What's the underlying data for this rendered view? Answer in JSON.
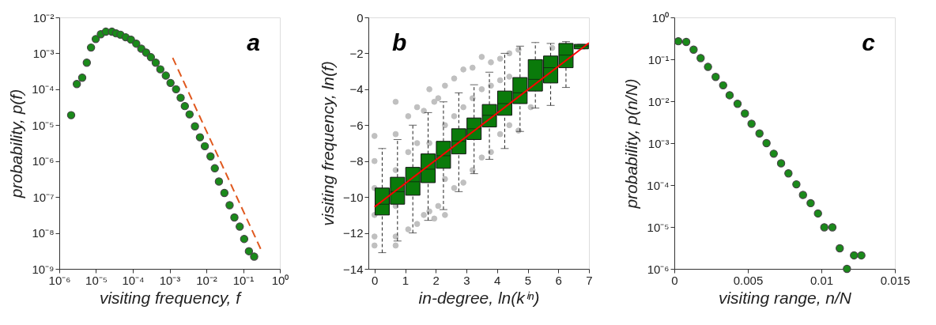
{
  "chart_data": [
    {
      "type": "scatter",
      "log": "xy",
      "marker": "circle",
      "grid": false,
      "xlabel": "visiting frequency, f",
      "ylabel": "probability, p(f)",
      "annotations": [
        "a"
      ],
      "xlim": [
        1e-06,
        1
      ],
      "ylim": [
        1e-09,
        0.01
      ],
      "xticks": [
        {
          "value": 1e-06,
          "label": "10⁻⁶"
        },
        {
          "value": 1e-05,
          "label": "10⁻⁵"
        },
        {
          "value": 0.0001,
          "label": "10⁻⁴"
        },
        {
          "value": 0.001,
          "label": "10⁻³"
        },
        {
          "value": 0.01,
          "label": "10⁻²"
        },
        {
          "value": 0.1,
          "label": "10⁻¹"
        },
        {
          "value": 1,
          "label": "10⁰"
        }
      ],
      "yticks": [
        {
          "value": 1e-09,
          "label": "10⁻⁹"
        },
        {
          "value": 1e-08,
          "label": "10⁻⁸"
        },
        {
          "value": 1e-07,
          "label": "10⁻⁷"
        },
        {
          "value": 1e-06,
          "label": "10⁻⁶"
        },
        {
          "value": 1e-05,
          "label": "10⁻⁵"
        },
        {
          "value": 0.0001,
          "label": "10⁻⁴"
        },
        {
          "value": 0.001,
          "label": "10⁻³"
        },
        {
          "value": 0.01,
          "label": "10⁻²"
        }
      ],
      "series": [
        {
          "type": "scatter",
          "color": "#1a8a1a",
          "x": [
            2.1e-06,
            3e-06,
            4.2e-06,
            5.6e-06,
            7.3e-06,
            9.8e-06,
            1.35e-05,
            1.85e-05,
            2.7e-05,
            3.5e-05,
            4.6e-05,
            6.4e-05,
            8.9e-05,
            0.000124,
            0.00017,
            0.00023,
            0.00031,
            0.00042,
            0.00056,
            0.00079,
            0.00106,
            0.0015,
            0.002,
            0.0026,
            0.0035,
            0.0049,
            0.0067,
            0.0091,
            0.013,
            0.017,
            0.022,
            0.031,
            0.043,
            0.058,
            0.081,
            0.107,
            0.144,
            0.2
          ],
          "values": [
            1.9e-05,
            0.00014,
            0.00021,
            0.00055,
            0.00145,
            0.0025,
            0.0034,
            0.004,
            0.004,
            0.0036,
            0.0033,
            0.0028,
            0.0024,
            0.00186,
            0.00135,
            0.00105,
            0.00078,
            0.00055,
            0.00036,
            0.00024,
            0.00015,
            0.0001,
            5.8e-05,
            3.4e-05,
            2e-05,
            9.3e-06,
            4.6e-06,
            2.6e-06,
            1.35e-06,
            6.3e-07,
            2.7e-07,
            1.3e-07,
            5.9e-08,
            2.7e-08,
            1.5e-08,
            6.8e-09,
            3.1e-09,
            2.2e-09
          ]
        },
        {
          "type": "line",
          "marker": "none",
          "line_style": "dashed",
          "color": "#e0591f",
          "x": [
            0.00115,
            0.3
          ],
          "values": [
            0.00085,
            3.6e-09
          ]
        }
      ]
    },
    {
      "type": "box",
      "grid": false,
      "xlabel": "in-degree, ln(kⁱⁿ)",
      "ylabel": "visiting frequency, ln(f)",
      "annotations": [
        "b"
      ],
      "xlim": [
        -0.2,
        7
      ],
      "ylim": [
        -14,
        0
      ],
      "xticks": [
        0,
        1,
        2,
        3,
        4,
        5,
        6,
        7
      ],
      "yticks": [
        -14,
        -12,
        -10,
        -8,
        -6,
        -4,
        -2,
        0
      ],
      "series": [
        {
          "type": "scatter",
          "marker": "circle",
          "color": "#c0c0c0",
          "x": [
            0,
            0,
            0,
            0,
            0,
            0,
            0.69,
            0.69,
            0.69,
            0.69,
            0.69,
            0.69,
            1.1,
            1.1,
            1.1,
            1.39,
            1.39,
            1.39,
            1.61,
            1.61,
            1.79,
            1.79,
            1.79,
            1.95,
            1.95,
            2.08,
            2.08,
            2.3,
            2.3,
            2.3,
            2.3,
            2.6,
            2.6,
            2.6,
            2.9,
            2.9,
            2.9,
            3.2,
            3.2,
            3.2,
            3.5,
            3.5,
            3.5,
            3.8,
            3.8,
            3.8,
            4.1,
            4.1,
            4.1,
            4.4,
            4.4,
            4.4,
            4.7,
            4.7,
            5.1,
            5.8
          ],
          "values": [
            -6.6,
            -8,
            -9.5,
            -11,
            -12.2,
            -12.7,
            -4.7,
            -6.5,
            -8.5,
            -10.5,
            -12.2,
            -12.7,
            -5.5,
            -7.5,
            -11.8,
            -5,
            -7,
            -11.5,
            -5.2,
            -11,
            -4,
            -7,
            -10.8,
            -4.7,
            -11.2,
            -4.5,
            -10.5,
            -3.8,
            -6,
            -9,
            -11,
            -3.4,
            -5.5,
            -9.5,
            -2.9,
            -5,
            -9.2,
            -2.8,
            -4.5,
            -8.5,
            -2.2,
            -4,
            -7.8,
            -2.5,
            -3.8,
            -7.5,
            -2.3,
            -3.5,
            -6.5,
            -2,
            -3.3,
            -6,
            -1.8,
            -6.3,
            -5,
            -1.7
          ]
        },
        {
          "type": "box",
          "color": "#0a7a0a",
          "x": [
            0.25,
            0.75,
            1.25,
            1.75,
            2.25,
            2.75,
            3.25,
            3.75,
            4.25,
            4.75,
            5.25,
            5.75,
            6.25,
            6.75
          ],
          "boxes": [
            {
              "low": -13.1,
              "q1": -11.0,
              "median": -10.4,
              "q3": -9.5,
              "high": -7.3
            },
            {
              "low": -12.45,
              "q1": -10.4,
              "median": -9.7,
              "q3": -8.9,
              "high": -6.8
            },
            {
              "low": -12.0,
              "q1": -9.9,
              "median": -9.15,
              "q3": -8.35,
              "high": -6.0
            },
            {
              "low": -11.3,
              "q1": -9.2,
              "median": -8.45,
              "q3": -7.6,
              "high": -5.3
            },
            {
              "low": -10.7,
              "q1": -8.4,
              "median": -7.7,
              "q3": -6.9,
              "high": -4.7
            },
            {
              "low": -9.7,
              "q1": -7.6,
              "median": -6.9,
              "q3": -6.2,
              "high": -4.2
            },
            {
              "low": -8.7,
              "q1": -6.8,
              "median": -6.2,
              "q3": -5.6,
              "high": -3.75
            },
            {
              "low": -7.9,
              "q1": -6.1,
              "median": -5.45,
              "q3": -4.85,
              "high": -3.05
            },
            {
              "low": -7.3,
              "q1": -5.45,
              "median": -4.8,
              "q3": -4.1,
              "high": -2.0
            },
            {
              "low": -6.35,
              "q1": -4.8,
              "median": -4.2,
              "q3": -3.35,
              "high": -1.6
            },
            {
              "low": -5.05,
              "q1": -4.1,
              "median": -3.45,
              "q3": -2.35,
              "high": -1.4
            },
            {
              "low": -4.9,
              "q1": -3.65,
              "median": -2.8,
              "q3": -2.15,
              "high": -1.45
            },
            {
              "low": -3.9,
              "q1": -2.8,
              "median": -2.1,
              "q3": -1.45,
              "high": -1.35
            },
            {
              "low": -1.75,
              "q1": -1.75,
              "median": -1.6,
              "q3": -1.5,
              "high": -1.5
            }
          ]
        },
        {
          "type": "line",
          "marker": "none",
          "color": "#ff0000",
          "x": [
            0,
            7
          ],
          "values": [
            -10.55,
            -1.42
          ]
        }
      ]
    },
    {
      "type": "scatter",
      "log": "y",
      "marker": "circle",
      "grid": false,
      "xlabel": "visiting range, n/N",
      "ylabel": "probability, p(n/N)",
      "annotations": [
        "c"
      ],
      "xlim": [
        0,
        0.015
      ],
      "ylim": [
        1e-06,
        1
      ],
      "xticks": [
        0,
        0.005,
        0.01,
        0.015
      ],
      "yticks": [
        {
          "value": 1e-06,
          "label": "10⁻⁶"
        },
        {
          "value": 1e-05,
          "label": "10⁻⁵"
        },
        {
          "value": 0.0001,
          "label": "10⁻⁴"
        },
        {
          "value": 0.001,
          "label": "10⁻³"
        },
        {
          "value": 0.01,
          "label": "10⁻²"
        },
        {
          "value": 0.1,
          "label": "10⁻¹"
        },
        {
          "value": 1,
          "label": "10⁰"
        }
      ],
      "series": [
        {
          "type": "scatter",
          "color": "#1a8a1a",
          "x": [
            0.00027,
            0.00081,
            0.00131,
            0.00179,
            0.00229,
            0.00281,
            0.00332,
            0.00376,
            0.0043,
            0.0048,
            0.00525,
            0.00579,
            0.00627,
            0.00676,
            0.00726,
            0.00776,
            0.0083,
            0.00875,
            0.00927,
            0.00977,
            0.0102,
            0.01075,
            0.01125,
            0.01174,
            0.01222,
            0.01272
          ],
          "values": [
            0.27,
            0.26,
            0.17,
            0.107,
            0.066,
            0.038,
            0.024,
            0.0139,
            0.0087,
            0.0051,
            0.0029,
            0.0017,
            0.001,
            0.00056,
            0.00033,
            0.00019,
            0.000104,
            5.8e-05,
            3.7e-05,
            2.1e-05,
            9.8e-06,
            9.8e-06,
            3.1e-06,
            1e-06,
            2.1e-06,
            2.1e-06
          ]
        }
      ]
    }
  ]
}
